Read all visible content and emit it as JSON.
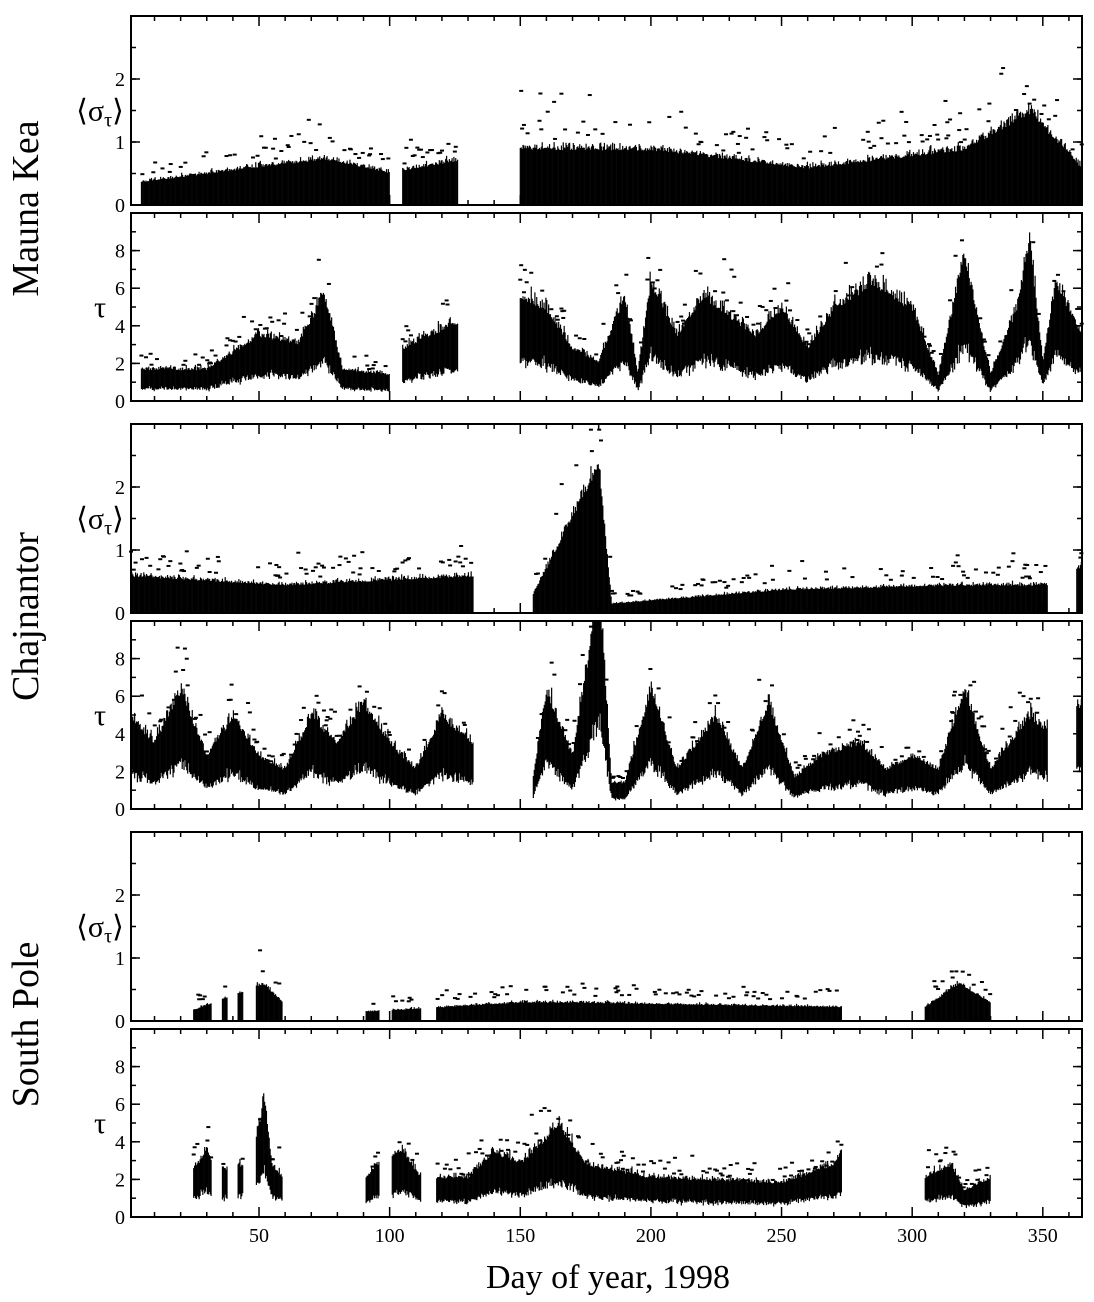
{
  "chart_data": {
    "type": "scatter",
    "xlabel": "Day of year, 1998",
    "x_ticks": [
      50,
      100,
      150,
      200,
      250,
      300,
      350
    ],
    "xlim": [
      1,
      365
    ],
    "sites": [
      {
        "name": "Mauna Kea",
        "sigma_panel": {
          "ylabel": "⟨σ_τ⟩",
          "ylim": [
            0,
            3
          ],
          "yticks": [
            0,
            1,
            2
          ]
        },
        "tau_panel": {
          "ylabel": "τ",
          "ylim": [
            0,
            10
          ],
          "yticks": [
            0,
            2,
            4,
            6,
            8
          ]
        },
        "segments": [
          [
            5,
            100
          ],
          [
            105,
            126
          ],
          [
            150,
            365
          ]
        ],
        "tau_profile": [
          [
            5,
            1.2
          ],
          [
            30,
            1.2
          ],
          [
            50,
            2.5
          ],
          [
            65,
            2.2
          ],
          [
            75,
            4.0
          ],
          [
            82,
            1.2
          ],
          [
            100,
            1.0
          ],
          [
            105,
            2.0
          ],
          [
            115,
            2.5
          ],
          [
            126,
            3.0
          ],
          [
            150,
            4.0
          ],
          [
            160,
            3.5
          ],
          [
            170,
            2.0
          ],
          [
            180,
            1.5
          ],
          [
            190,
            4.0
          ],
          [
            195,
            1.0
          ],
          [
            200,
            4.5
          ],
          [
            210,
            2.5
          ],
          [
            220,
            4.0
          ],
          [
            240,
            2.5
          ],
          [
            250,
            3.5
          ],
          [
            260,
            2.0
          ],
          [
            270,
            3.5
          ],
          [
            285,
            4.5
          ],
          [
            300,
            3.5
          ],
          [
            310,
            1.0
          ],
          [
            320,
            5.5
          ],
          [
            330,
            1.0
          ],
          [
            340,
            3.5
          ],
          [
            345,
            6.0
          ],
          [
            350,
            1.5
          ],
          [
            355,
            4.5
          ],
          [
            365,
            2.5
          ]
        ],
        "sigma_profile": [
          [
            5,
            0.25
          ],
          [
            75,
            0.5
          ],
          [
            100,
            0.35
          ],
          [
            150,
            0.6
          ],
          [
            200,
            0.6
          ],
          [
            260,
            0.4
          ],
          [
            320,
            0.6
          ],
          [
            345,
            1.0
          ],
          [
            365,
            0.4
          ]
        ]
      },
      {
        "name": "Chajnantor",
        "sigma_panel": {
          "ylabel": "⟨σ_τ⟩",
          "ylim": [
            0,
            3
          ],
          "yticks": [
            0,
            1,
            2
          ]
        },
        "tau_panel": {
          "ylabel": "τ",
          "ylim": [
            0,
            10
          ],
          "yticks": [
            0,
            2,
            4,
            6,
            8
          ]
        },
        "segments": [
          [
            1,
            132
          ],
          [
            155,
            352
          ],
          [
            363,
            365
          ]
        ],
        "tau_profile": [
          [
            1,
            3.5
          ],
          [
            10,
            2.5
          ],
          [
            20,
            4.5
          ],
          [
            30,
            2.0
          ],
          [
            40,
            3.5
          ],
          [
            50,
            2.0
          ],
          [
            60,
            1.5
          ],
          [
            70,
            3.5
          ],
          [
            80,
            2.5
          ],
          [
            90,
            4.0
          ],
          [
            100,
            2.5
          ],
          [
            110,
            1.5
          ],
          [
            120,
            3.5
          ],
          [
            132,
            2.5
          ],
          [
            155,
            1.2
          ],
          [
            160,
            4.5
          ],
          [
            170,
            2.0
          ],
          [
            175,
            5.0
          ],
          [
            180,
            9.0
          ],
          [
            185,
            1.0
          ],
          [
            190,
            1.0
          ],
          [
            200,
            4.5
          ],
          [
            210,
            1.5
          ],
          [
            225,
            3.5
          ],
          [
            235,
            1.5
          ],
          [
            245,
            4.0
          ],
          [
            255,
            1.2
          ],
          [
            265,
            2.0
          ],
          [
            280,
            2.5
          ],
          [
            290,
            1.5
          ],
          [
            300,
            2.0
          ],
          [
            310,
            1.5
          ],
          [
            320,
            4.5
          ],
          [
            330,
            1.5
          ],
          [
            345,
            3.5
          ],
          [
            352,
            3.0
          ],
          [
            365,
            4.0
          ]
        ],
        "sigma_profile": [
          [
            1,
            0.4
          ],
          [
            60,
            0.3
          ],
          [
            132,
            0.4
          ],
          [
            155,
            0.2
          ],
          [
            180,
            1.6
          ],
          [
            185,
            0.1
          ],
          [
            250,
            0.25
          ],
          [
            320,
            0.3
          ],
          [
            352,
            0.3
          ],
          [
            365,
            0.5
          ]
        ]
      },
      {
        "name": "South Pole",
        "sigma_panel": {
          "ylabel": "⟨σ_τ⟩",
          "ylim": [
            0,
            3
          ],
          "yticks": [
            0,
            1,
            2
          ]
        },
        "tau_panel": {
          "ylabel": "τ",
          "ylim": [
            0,
            10
          ],
          "yticks": [
            0,
            2,
            4,
            6,
            8
          ]
        },
        "segments": [
          [
            25,
            32
          ],
          [
            36,
            38
          ],
          [
            42,
            44
          ],
          [
            49,
            59
          ],
          [
            91,
            96
          ],
          [
            101,
            112
          ],
          [
            118,
            170
          ],
          [
            170,
            273
          ],
          [
            305,
            330
          ]
        ],
        "tau_profile": [
          [
            25,
            1.8
          ],
          [
            30,
            2.5
          ],
          [
            32,
            2.0
          ],
          [
            38,
            1.8
          ],
          [
            44,
            2.0
          ],
          [
            49,
            3.0
          ],
          [
            52,
            4.5
          ],
          [
            55,
            2.0
          ],
          [
            59,
            1.5
          ],
          [
            91,
            1.5
          ],
          [
            95,
            2.0
          ],
          [
            105,
            2.5
          ],
          [
            112,
            1.5
          ],
          [
            130,
            1.5
          ],
          [
            140,
            2.5
          ],
          [
            150,
            2.0
          ],
          [
            160,
            3.0
          ],
          [
            165,
            3.5
          ],
          [
            175,
            2.0
          ],
          [
            200,
            1.5
          ],
          [
            250,
            1.3
          ],
          [
            270,
            2.0
          ],
          [
            273,
            2.5
          ],
          [
            305,
            1.5
          ],
          [
            315,
            2.0
          ],
          [
            320,
            1.0
          ],
          [
            330,
            1.5
          ]
        ],
        "sigma_profile": [
          [
            25,
            0.12
          ],
          [
            52,
            0.4
          ],
          [
            59,
            0.2
          ],
          [
            91,
            0.1
          ],
          [
            150,
            0.2
          ],
          [
            170,
            0.2
          ],
          [
            273,
            0.15
          ],
          [
            305,
            0.15
          ],
          [
            318,
            0.4
          ],
          [
            330,
            0.2
          ]
        ]
      }
    ]
  }
}
